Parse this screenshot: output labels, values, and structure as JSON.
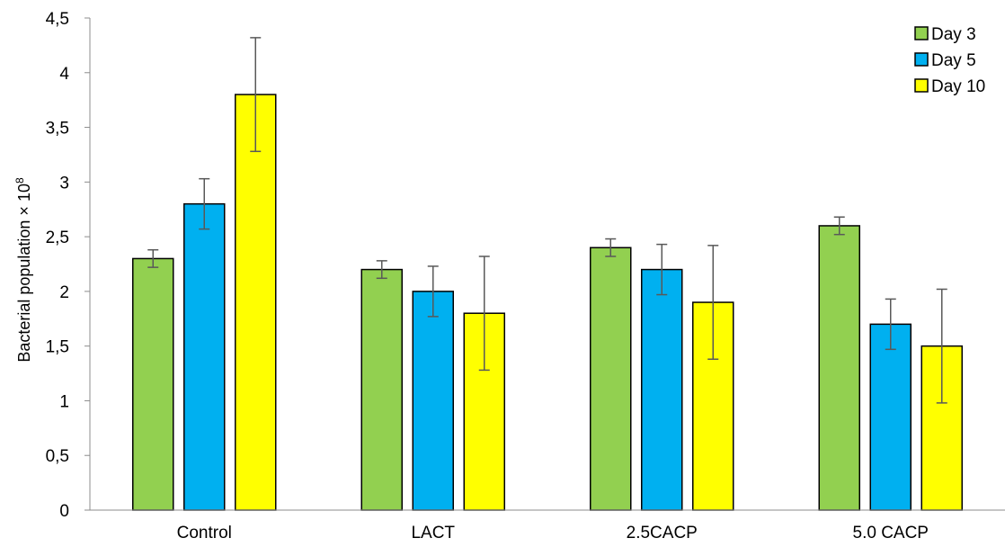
{
  "chart_data": {
    "type": "bar",
    "title": "",
    "xlabel": "",
    "ylabel": "Bacterial population × 10",
    "ylabel_superscript": "8",
    "categories": [
      "Control",
      "LACT",
      "2.5CACP",
      "5.0 CACP"
    ],
    "series": [
      {
        "name": "Day 3",
        "color": "#92d050",
        "values": [
          2.3,
          2.2,
          2.4,
          2.6
        ],
        "errors": [
          0.08,
          0.08,
          0.08,
          0.08
        ]
      },
      {
        "name": "Day 5",
        "color": "#00b0f0",
        "values": [
          2.8,
          2.0,
          2.2,
          1.7
        ],
        "errors": [
          0.23,
          0.23,
          0.23,
          0.23
        ]
      },
      {
        "name": "Day 10",
        "color": "#ffff00",
        "values": [
          3.8,
          1.8,
          1.9,
          1.5
        ],
        "errors": [
          0.52,
          0.52,
          0.52,
          0.52
        ]
      }
    ],
    "ylim": [
      0,
      4.5
    ],
    "yticks": [
      "0",
      "0,5",
      "1",
      "1,5",
      "2",
      "2,5",
      "3",
      "3,5",
      "4",
      "4,5"
    ],
    "grid": false,
    "legend_position": "top-right"
  }
}
